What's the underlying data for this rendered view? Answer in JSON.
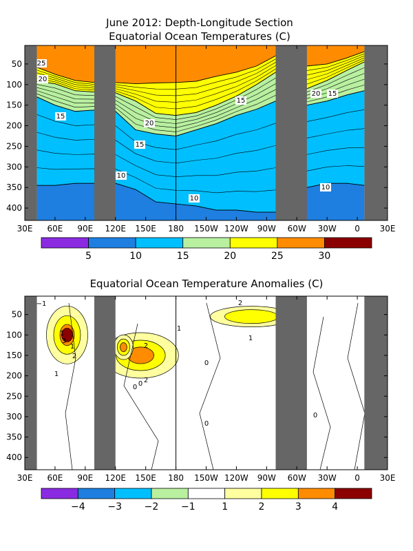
{
  "chart_data": [
    {
      "type": "heatmap",
      "title": "June 2012: Depth-Longitude Section",
      "subtitle": "Equatorial Ocean Temperatures (C)",
      "x_ticks": [
        "30E",
        "60E",
        "90E",
        "120E",
        "150E",
        "180",
        "150W",
        "120W",
        "90W",
        "60W",
        "30W",
        "0",
        "30E"
      ],
      "y_ticks": [
        "50",
        "100",
        "150",
        "200",
        "250",
        "300",
        "350",
        "400"
      ],
      "xlim": [
        30,
        390
      ],
      "ylim": [
        430,
        5
      ],
      "land_masks": [
        [
          30,
          42
        ],
        [
          99,
          120
        ],
        [
          279,
          310
        ],
        [
          367,
          390
        ]
      ],
      "colorbar": {
        "colors": [
          "#8a2be2",
          "#1e7fe0",
          "#00bfff",
          "#b8f0a0",
          "#ffff00",
          "#ff8c00",
          "#8b0000"
        ],
        "labels": [
          "5",
          "10",
          "15",
          "20",
          "25",
          "30"
        ]
      },
      "isotherm_labels": [
        "25",
        "20",
        "15",
        "20",
        "15",
        "10",
        "10",
        "15",
        "20",
        "15",
        "10"
      ],
      "depth_of_isotherms": {
        "longitudes": [
          42,
          60,
          80,
          99,
          120,
          140,
          160,
          180,
          200,
          220,
          240,
          260,
          279,
          310,
          330,
          350,
          367
        ],
        "t25": [
          58,
          75,
          90,
          95,
          95,
          98,
          96,
          95,
          92,
          80,
          70,
          55,
          30,
          55,
          50,
          35,
          20
        ],
        "t20": [
          92,
          98,
          115,
          118,
          120,
          140,
          170,
          175,
          168,
          150,
          128,
          100,
          70,
          110,
          90,
          65,
          45
        ],
        "t15": [
          130,
          150,
          165,
          162,
          165,
          210,
          220,
          225,
          210,
          195,
          175,
          160,
          140,
          150,
          140,
          125,
          115
        ],
        "t10": [
          345,
          345,
          340,
          340,
          340,
          355,
          385,
          390,
          395,
          405,
          405,
          410,
          410,
          350,
          340,
          340,
          345
        ]
      }
    },
    {
      "type": "heatmap",
      "title": "Equatorial Ocean Temperature Anomalies (C)",
      "x_ticks": [
        "30E",
        "60E",
        "90E",
        "120E",
        "150E",
        "180",
        "150W",
        "120W",
        "90W",
        "60W",
        "30W",
        "0",
        "30E"
      ],
      "y_ticks": [
        "50",
        "100",
        "150",
        "200",
        "250",
        "300",
        "350",
        "400"
      ],
      "xlim": [
        30,
        390
      ],
      "ylim": [
        430,
        5
      ],
      "land_masks": [
        [
          30,
          42
        ],
        [
          99,
          120
        ],
        [
          279,
          310
        ],
        [
          367,
          390
        ]
      ],
      "colorbar": {
        "colors": [
          "#8a2be2",
          "#1e7fe0",
          "#00bfff",
          "#b8f0a0",
          "#ffffff",
          "#ffffa0",
          "#ffff00",
          "#ff8c00",
          "#8b0000"
        ],
        "labels": [
          "−4",
          "−3",
          "−2",
          "−1",
          "1",
          "2",
          "3",
          "4"
        ]
      },
      "anomaly_labels": [
        "−1",
        "1",
        "3",
        "1",
        "2",
        "1",
        "0",
        "0",
        "2",
        "2",
        "1",
        "0",
        "0",
        "2",
        "1",
        "0"
      ],
      "warm_anomaly_centers": [
        {
          "lon": 72,
          "depth": 100,
          "max": 4
        },
        {
          "lon": 145,
          "depth": 150,
          "max": 3
        },
        {
          "lon": 128,
          "depth": 130,
          "max": 3
        },
        {
          "lon": 255,
          "depth": 55,
          "max": 2
        }
      ]
    }
  ]
}
